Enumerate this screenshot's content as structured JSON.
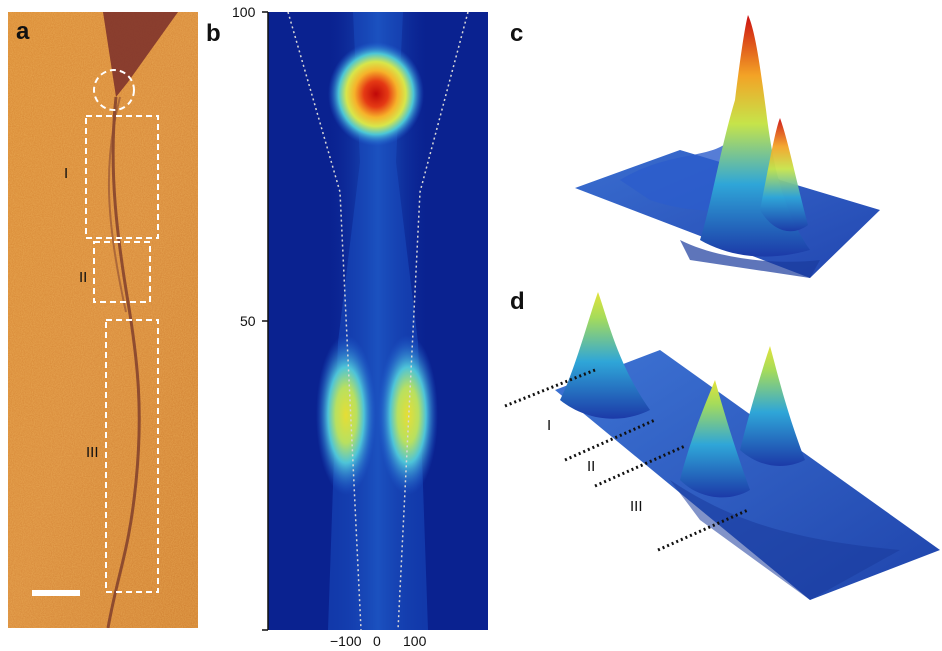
{
  "panels": {
    "a": {
      "letter": "a",
      "regions": [
        "I",
        "II",
        "III"
      ]
    },
    "b": {
      "letter": "b",
      "y_ticks": [
        "100",
        "50"
      ],
      "x_ticks": [
        "−100",
        "0",
        "100"
      ],
      "colormap": [
        "#0a1c8c",
        "#1f63d6",
        "#3fbfd8",
        "#e8e23a",
        "#f08a1c",
        "#c80a0a"
      ]
    },
    "c": {
      "letter": "c"
    },
    "d": {
      "letter": "d",
      "regions": [
        "I",
        "II",
        "III"
      ]
    }
  }
}
